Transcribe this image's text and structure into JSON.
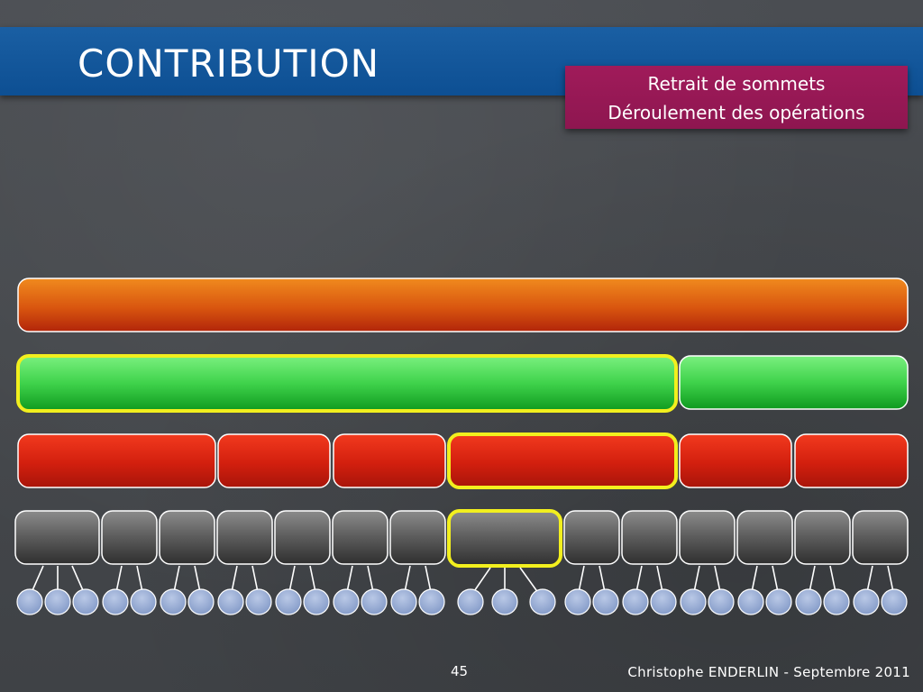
{
  "slide": {
    "title": "CONTRIBUTION",
    "section": {
      "line1": "Retrait de sommets",
      "line2": "Déroulement des opérations"
    },
    "page_number": "45",
    "footer": "Christophe ENDERLIN  - Septembre 2011"
  },
  "diagram": {
    "colors": {
      "orange": "#e06a14",
      "green": "#2fc43e",
      "red": "#d8200e",
      "gray": "#555555",
      "highlight": "#f2ef1e",
      "leaf": "#8fa6cf"
    },
    "levels": [
      {
        "name": "orange",
        "segments": 1,
        "highlighted": []
      },
      {
        "name": "green",
        "segments": 2,
        "highlighted": [
          0
        ]
      },
      {
        "name": "red",
        "segments": 6,
        "highlighted": [
          3
        ]
      },
      {
        "name": "gray",
        "segments": 14,
        "highlighted": [
          7
        ]
      }
    ],
    "leaf_count": 31
  }
}
